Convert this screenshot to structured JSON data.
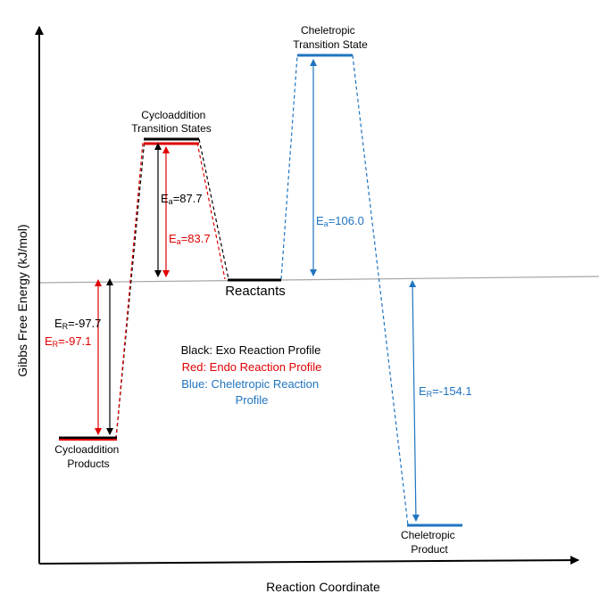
{
  "axes": {
    "y_label": "Gibbs Free Energy (kJ/mol)",
    "x_label": "Reaction Coordinate"
  },
  "states": {
    "reactants": "Reactants",
    "cyclo_ts": [
      "Cycloaddition",
      "Transition States"
    ],
    "cyclo_products": [
      "Cycloaddition",
      "Products"
    ],
    "chel_ts": [
      "Cheletropic",
      "Transition State"
    ],
    "chel_product": [
      "Cheletropic",
      "Product"
    ]
  },
  "energies": {
    "ea_exo": {
      "prefix": "E",
      "sub": "a",
      "value": "=87.7"
    },
    "ea_endo": {
      "prefix": "E",
      "sub": "a",
      "value": "=83.7"
    },
    "ea_chel": {
      "prefix": "E",
      "sub": "a",
      "value": "=106.0"
    },
    "er_exo": {
      "prefix": "E",
      "sub": "R",
      "value": "=-97.7"
    },
    "er_endo": {
      "prefix": "E",
      "sub": "R",
      "value": "=-97.1"
    },
    "er_chel": {
      "prefix": "E",
      "sub": "R",
      "value": "=-154.1"
    }
  },
  "legend": {
    "exo": "Black: Exo Reaction Profile",
    "endo": "Red: Endo Reaction Profile",
    "chel": [
      "Blue: Cheletropic Reaction",
      "Profile"
    ]
  },
  "colors": {
    "exo": "#000000",
    "endo": "#e00000",
    "chel": "#1f74c0",
    "baseline": "#a6a6a6"
  }
}
